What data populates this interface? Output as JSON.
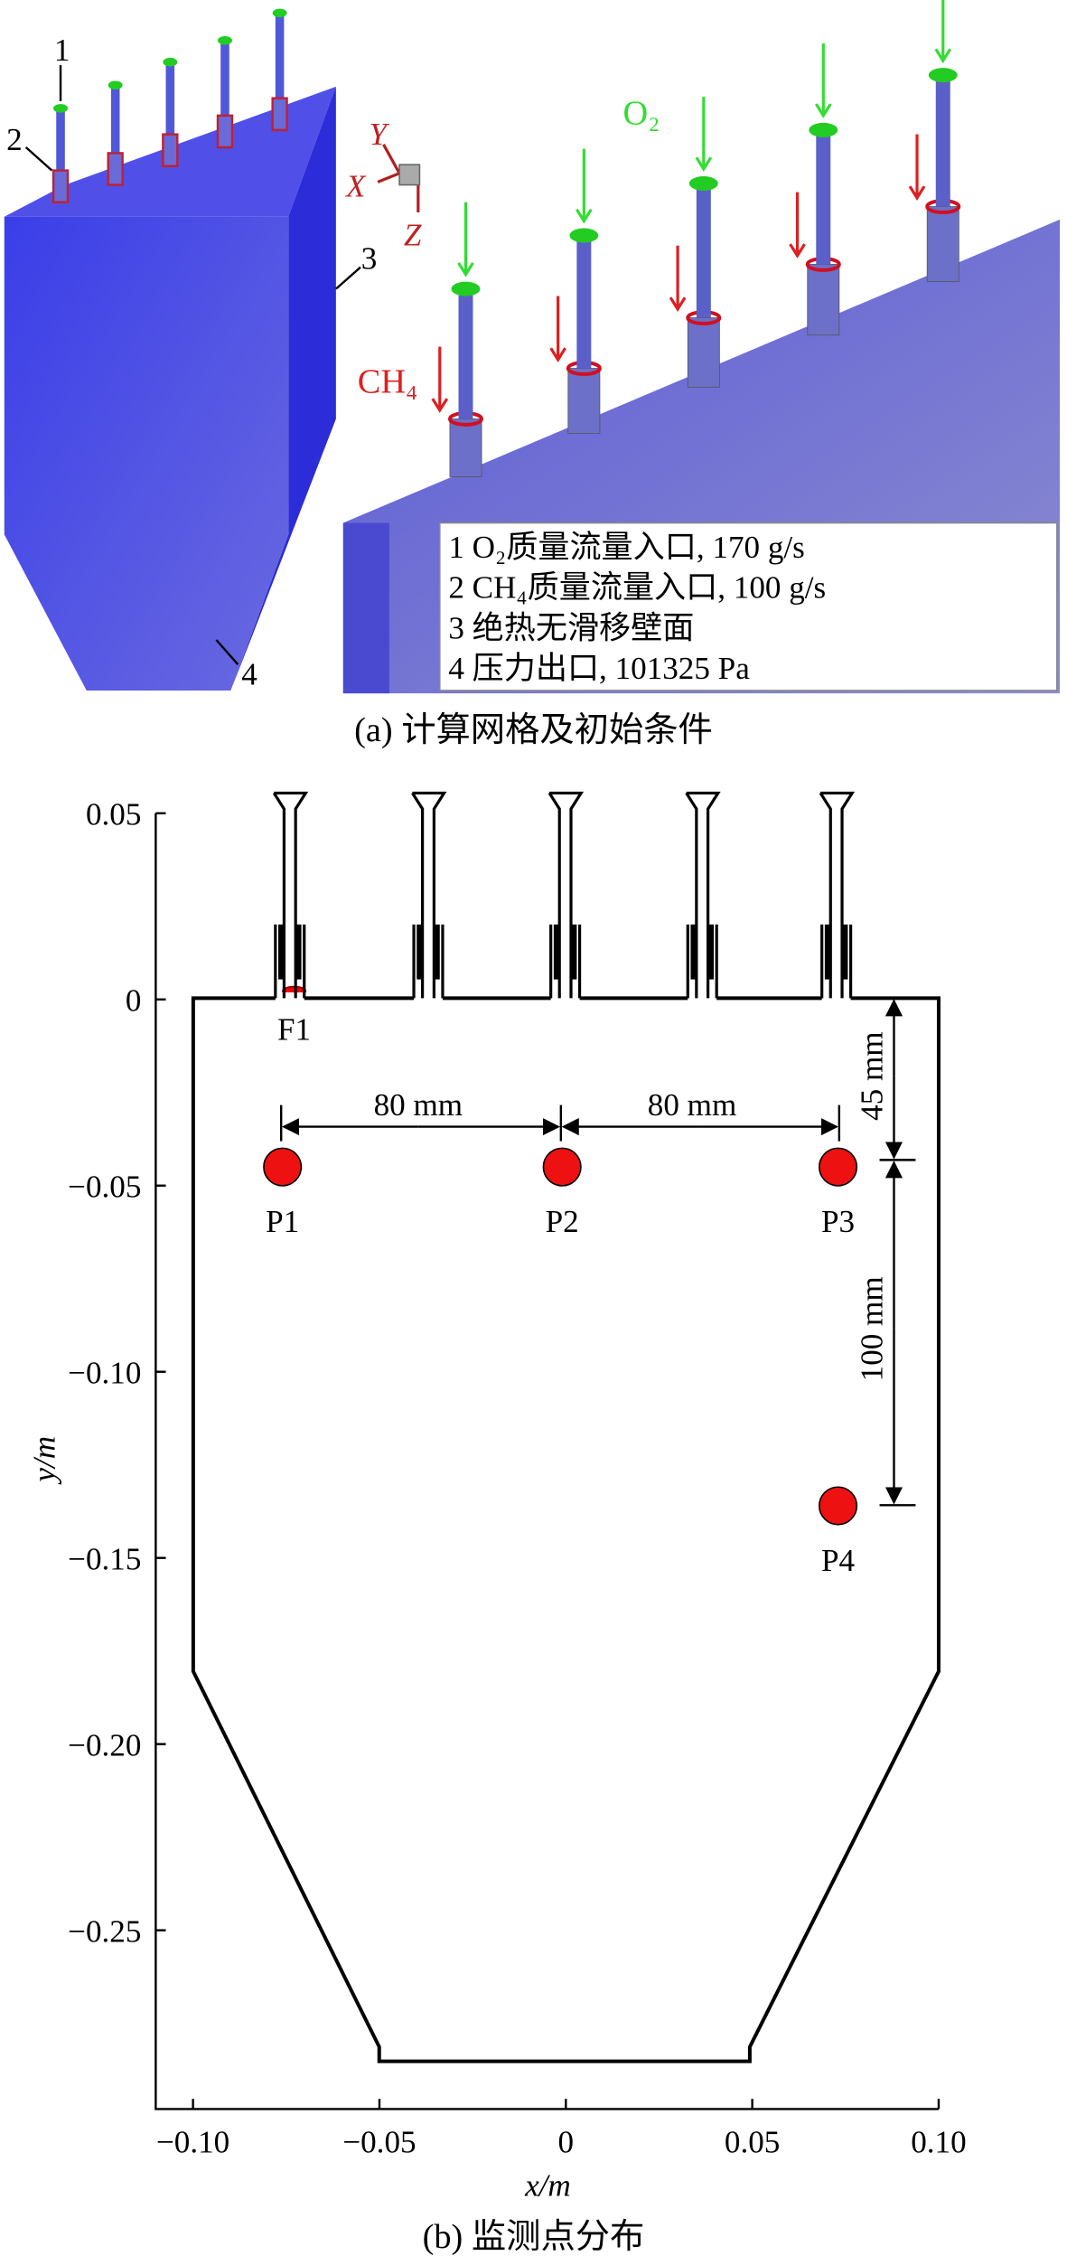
{
  "panel_a": {
    "caption": "(a) 计算网格及初始条件",
    "part_labels": [
      "1",
      "2",
      "3",
      "4"
    ],
    "axes": [
      "Y",
      "X",
      "Z"
    ],
    "o2_label": "O₂",
    "ch4_label": "CH₄",
    "legend": [
      "1 O₂质量流量入口, 170 g/s",
      "2 CH₄质量流量入口, 100 g/s",
      "3 绝热无滑移壁面",
      "4 压力出口, 101325 Pa"
    ]
  },
  "panel_b": {
    "caption": "(b) 监测点分布",
    "x_label": "x/m",
    "y_label": "y/m",
    "xlim": [
      -0.11,
      0.1
    ],
    "ylim": [
      -0.298,
      0.05
    ],
    "xticks": [
      {
        "value": -0.1,
        "label": "−0.10"
      },
      {
        "value": -0.05,
        "label": "−0.05"
      },
      0,
      0.05,
      {
        "value": 0.1,
        "label": "0.10"
      }
    ],
    "yticks": [
      0.05,
      0,
      {
        "value": -0.05,
        "label": "−0.05"
      },
      {
        "value": -0.1,
        "label": "−0.10"
      },
      {
        "value": -0.15,
        "label": "−0.15"
      },
      {
        "value": -0.2,
        "label": "−0.20"
      },
      {
        "value": -0.25,
        "label": "−0.25"
      }
    ],
    "points": [
      {
        "label": "P1",
        "x": -0.076,
        "y": -0.045
      },
      {
        "label": "P2",
        "x": -0.001,
        "y": -0.045
      },
      {
        "label": "P3",
        "x": 0.073,
        "y": -0.045
      },
      {
        "label": "P4",
        "x": 0.073,
        "y": -0.136
      }
    ],
    "flame_label": "F1",
    "dimensions": [
      "80 mm",
      "80 mm",
      "45 mm",
      "100 mm"
    ]
  }
}
